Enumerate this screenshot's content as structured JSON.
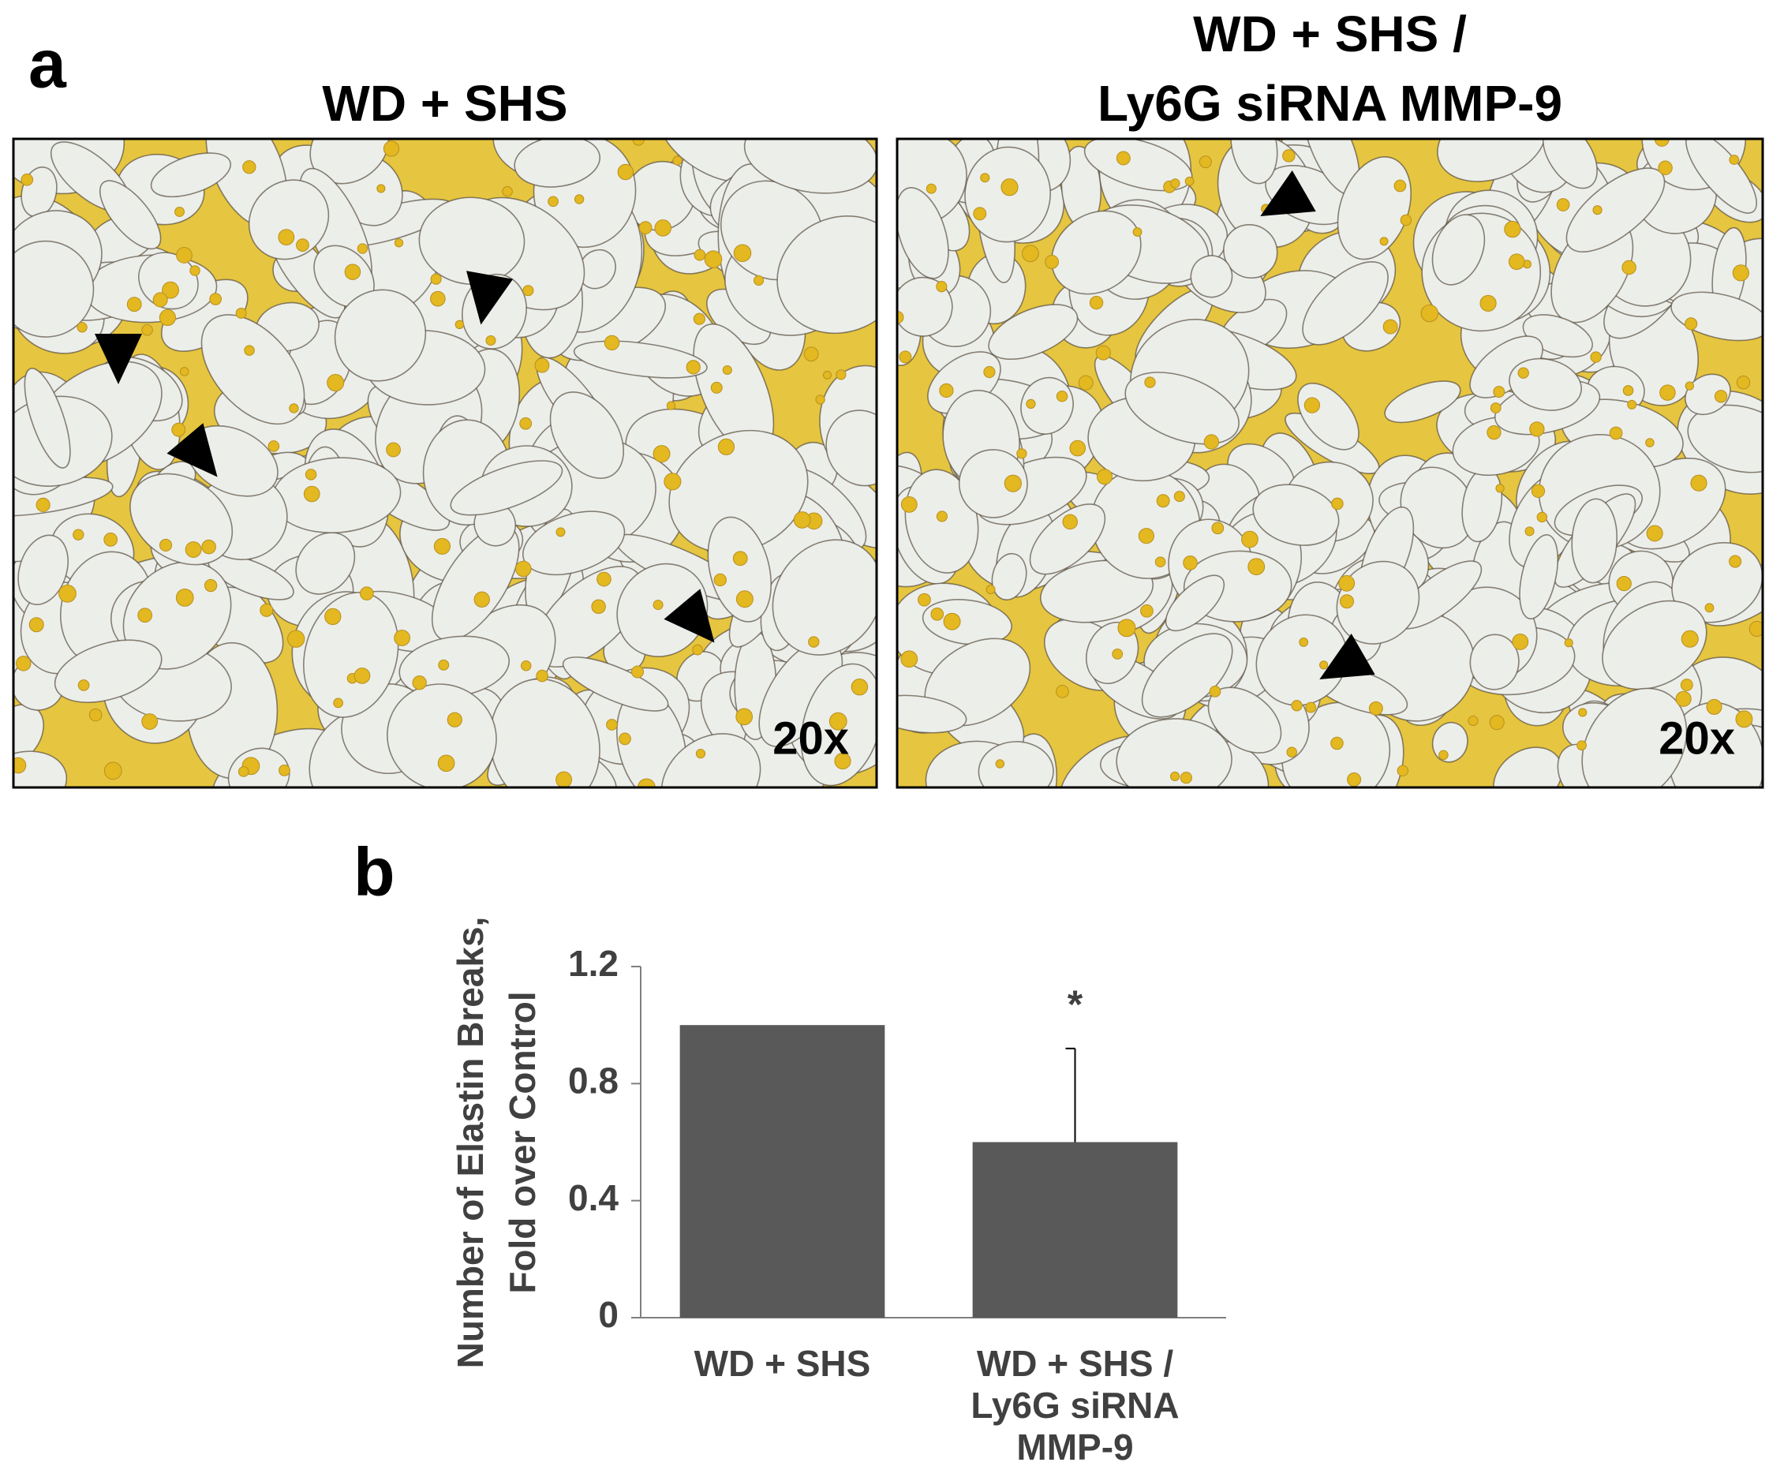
{
  "panel_a": {
    "label": "a",
    "images": [
      {
        "title": [
          "WD + SHS"
        ],
        "magnification": "20x"
      },
      {
        "title": [
          "WD + SHS /",
          "Ly6G siRNA MMP-9"
        ],
        "magnification": "20x"
      }
    ]
  },
  "chart_data": {
    "type": "bar",
    "panel_label": "b",
    "y_label": [
      "Number of Elastin Breaks,",
      "Fold over Control"
    ],
    "categories": [
      [
        "WD + SHS"
      ],
      [
        "WD + SHS /",
        "Ly6G siRNA",
        "MMP-9"
      ]
    ],
    "values": [
      1.0,
      0.6
    ],
    "errors": [
      null,
      0.32
    ],
    "annotations": [
      null,
      "*"
    ],
    "color": "#595959",
    "ylim": [
      0,
      1.2
    ],
    "yticks": [
      0,
      0.4,
      0.8,
      1.2
    ]
  }
}
